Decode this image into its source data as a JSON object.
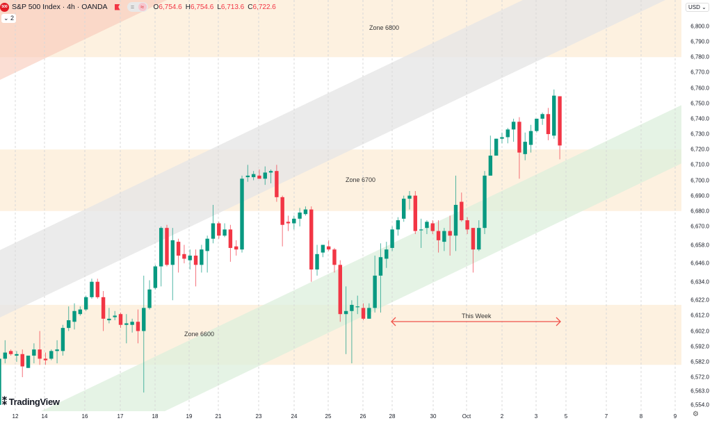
{
  "header": {
    "logo_text": "500",
    "title": "S&P 500 Index · 4h · OANDA",
    "btn1": "=",
    "btn2": "≈",
    "ohlc": [
      {
        "k": "O",
        "v": "6,754.6"
      },
      {
        "k": "H",
        "v": "6,754.6"
      },
      {
        "k": "L",
        "v": "6,713.6"
      },
      {
        "k": "C",
        "v": "6,722.6"
      }
    ],
    "collapse_label": "⌄ 2"
  },
  "axis": {
    "currency": "USD ⌄",
    "gear": "⚙",
    "prices": [
      "6,800.0",
      "6,790.0",
      "6,780.0",
      "6,770.0",
      "6,760.0",
      "6,750.0",
      "6,740.0",
      "6,730.0",
      "6,720.0",
      "6,710.0",
      "6,700.0",
      "6,690.0",
      "6,680.0",
      "6,670.0",
      "6,658.0",
      "6,646.0",
      "6,634.0",
      "6,622.0",
      "6,612.0",
      "6,602.0",
      "6,592.0",
      "6,582.0",
      "6,572.0",
      "6,563.0",
      "6,554.0"
    ],
    "dates": [
      "12",
      "14",
      "16",
      "17",
      "18",
      "19",
      "21",
      "23",
      "24",
      "25",
      "26",
      "28",
      "30",
      "Oct",
      "2",
      "3",
      "5",
      "7",
      "8",
      "9"
    ]
  },
  "zones": [
    {
      "label": "Zone 6800",
      "top": 6820,
      "bottom": 6780
    },
    {
      "label": "Zone 6700",
      "top": 6720,
      "bottom": 6680
    },
    {
      "label": "Zone 6600",
      "top": 6619,
      "bottom": 6580
    }
  ],
  "annotation": {
    "label": "This Week",
    "color": "#f0524a"
  },
  "brand": {
    "logo": "TradingView",
    "mark": "𝟏𝟕"
  },
  "colors": {
    "up": "#089981",
    "down": "#f23645",
    "zone": "#fdeedb",
    "channel_gray": "#e6e6e6",
    "channel_green": "#dcefdc",
    "channel_red": "#f9c8b8"
  },
  "chart_data": {
    "type": "candlestick",
    "symbol": "S&P 500 Index",
    "interval": "4h",
    "ylim": [
      6554,
      6800
    ],
    "candles": [
      [
        6554,
        6586,
        6550,
        6584
      ],
      [
        6584,
        6596,
        6581,
        6588
      ],
      [
        6589,
        6590,
        6586,
        6587
      ],
      [
        6586,
        6589,
        6582,
        6587
      ],
      [
        6587,
        6590,
        6572,
        6579
      ],
      [
        6578,
        6586,
        6578,
        6586
      ],
      [
        6586,
        6594,
        6581,
        6590
      ],
      [
        6590,
        6602,
        6580,
        6584
      ],
      [
        6584,
        6588,
        6580,
        6583
      ],
      [
        6584,
        6590,
        6583,
        6589
      ],
      [
        6589,
        6596,
        6581,
        6590
      ],
      [
        6589,
        6606,
        6586,
        6604
      ],
      [
        6604,
        6618,
        6602,
        6609
      ],
      [
        6608,
        6620,
        6603,
        6615
      ],
      [
        6613,
        6618,
        6612,
        6616
      ],
      [
        6616,
        6625,
        6615,
        6624
      ],
      [
        6624,
        6636,
        6623,
        6634
      ],
      [
        6634,
        6636,
        6623,
        6624
      ],
      [
        6624,
        6628,
        6602,
        6610
      ],
      [
        6609,
        6617,
        6607,
        6610
      ],
      [
        6611,
        6615,
        6609,
        6612
      ],
      [
        6613,
        6614,
        6604,
        6606
      ],
      [
        6606,
        6613,
        6594,
        6607
      ],
      [
        6606,
        6610,
        6601,
        6608
      ],
      [
        6608,
        6616,
        6594,
        6602
      ],
      [
        6602,
        6638,
        6562,
        6617
      ],
      [
        6617,
        6635,
        6616,
        6629
      ],
      [
        6630,
        6645,
        6629,
        6644
      ],
      [
        6644,
        6670,
        6631,
        6669
      ],
      [
        6669,
        6671,
        6644,
        6645
      ],
      [
        6645,
        6669,
        6622,
        6661
      ],
      [
        6660,
        6662,
        6640,
        6651
      ],
      [
        6652,
        6658,
        6646,
        6649
      ],
      [
        6648,
        6655,
        6642,
        6651
      ],
      [
        6651,
        6655,
        6631,
        6645
      ],
      [
        6645,
        6658,
        6640,
        6655
      ],
      [
        6654,
        6664,
        6640,
        6662
      ],
      [
        6662,
        6684,
        6659,
        6672
      ],
      [
        6672,
        6673,
        6662,
        6664
      ],
      [
        6664,
        6672,
        6663,
        6668
      ],
      [
        6668,
        6671,
        6647,
        6656
      ],
      [
        6657,
        6661,
        6651,
        6655
      ],
      [
        6655,
        6703,
        6653,
        6701
      ],
      [
        6702,
        6710,
        6699,
        6703
      ],
      [
        6702,
        6706,
        6700,
        6704
      ],
      [
        6703,
        6707,
        6701,
        6701
      ],
      [
        6701,
        6709,
        6697,
        6705
      ],
      [
        6705,
        6707,
        6698,
        6706
      ],
      [
        6706,
        6710,
        6686,
        6689
      ],
      [
        6689,
        6690,
        6657,
        6671
      ],
      [
        6673,
        6677,
        6667,
        6672
      ],
      [
        6672,
        6677,
        6668,
        6675
      ],
      [
        6675,
        6682,
        6670,
        6679
      ],
      [
        6678,
        6683,
        6677,
        6681
      ],
      [
        6681,
        6683,
        6634,
        6642
      ],
      [
        6642,
        6658,
        6638,
        6652
      ],
      [
        6653,
        6658,
        6650,
        6658
      ],
      [
        6657,
        6661,
        6654,
        6655
      ],
      [
        6655,
        6656,
        6640,
        6645
      ],
      [
        6645,
        6648,
        6608,
        6613
      ],
      [
        6613,
        6631,
        6587,
        6615
      ],
      [
        6615,
        6622,
        6581,
        6619
      ],
      [
        6618,
        6625,
        6613,
        6618
      ],
      [
        6617,
        6620,
        6609,
        6610
      ],
      [
        6610,
        6620,
        6610,
        6617
      ],
      [
        6617,
        6651,
        6614,
        6638
      ],
      [
        6638,
        6659,
        6614,
        6650
      ],
      [
        6649,
        6660,
        6643,
        6655
      ],
      [
        6656,
        6670,
        6654,
        6668
      ],
      [
        6668,
        6676,
        6664,
        6674
      ],
      [
        6675,
        6690,
        6673,
        6688
      ],
      [
        6688,
        6693,
        6681,
        6690
      ],
      [
        6690,
        6693,
        6665,
        6667
      ],
      [
        6668,
        6675,
        6656,
        6668
      ],
      [
        6669,
        6674,
        6665,
        6673
      ],
      [
        6672,
        6674,
        6665,
        6667
      ],
      [
        6667,
        6674,
        6653,
        6661
      ],
      [
        6660,
        6669,
        6654,
        6667
      ],
      [
        6667,
        6677,
        6651,
        6664
      ],
      [
        6664,
        6703,
        6654,
        6684
      ],
      [
        6686,
        6692,
        6673,
        6674
      ],
      [
        6674,
        6676,
        6665,
        6668
      ],
      [
        6669,
        6669,
        6640,
        6655
      ],
      [
        6655,
        6674,
        6654,
        6669
      ],
      [
        6669,
        6706,
        6665,
        6703
      ],
      [
        6703,
        6729,
        6703,
        6716
      ],
      [
        6716,
        6727,
        6716,
        6727
      ],
      [
        6727,
        6731,
        6724,
        6728
      ],
      [
        6728,
        6734,
        6724,
        6733
      ],
      [
        6733,
        6740,
        6725,
        6738
      ],
      [
        6738,
        6741,
        6701,
        6718
      ],
      [
        6717,
        6731,
        6713,
        6725
      ],
      [
        6723,
        6736,
        6718,
        6732
      ],
      [
        6732,
        6740,
        6731,
        6740
      ],
      [
        6740,
        6744,
        6736,
        6743
      ],
      [
        6743,
        6747,
        6726,
        6730
      ],
      [
        6729,
        6759,
        6727,
        6755
      ],
      [
        6754.6,
        6754.6,
        6713.6,
        6722.6
      ]
    ]
  }
}
